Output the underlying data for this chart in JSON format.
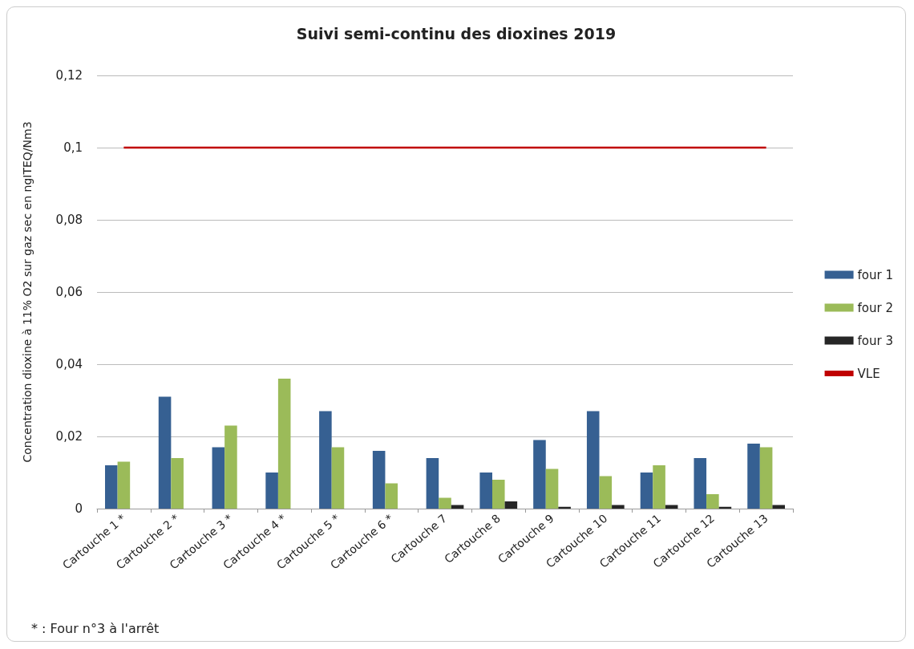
{
  "chart_data": {
    "type": "bar",
    "title": "Suivi semi-continu des dioxines 2019",
    "ylabel": "Concentration dioxine à 11% O2 sur gaz sec en ngITEQ/Nm3",
    "categories": [
      "Cartouche 1 *",
      "Cartouche 2 *",
      "Cartouche 3 *",
      "Cartouche 4 *",
      "Cartouche 5 *",
      "Cartouche 6 *",
      "Cartouche 7",
      "Cartouche 8",
      "Cartouche 9",
      "Cartouche 10",
      "Cartouche 11",
      "Cartouche 12",
      "Cartouche 13"
    ],
    "series": [
      {
        "name": "four 1",
        "color": "#366092",
        "values": [
          0.012,
          0.031,
          0.017,
          0.01,
          0.027,
          0.016,
          0.014,
          0.01,
          0.019,
          0.027,
          0.01,
          0.014,
          0.018
        ]
      },
      {
        "name": "four 2",
        "color": "#9bbb59",
        "values": [
          0.013,
          0.014,
          0.023,
          0.036,
          0.017,
          0.007,
          0.003,
          0.008,
          0.011,
          0.009,
          0.012,
          0.004,
          0.017
        ]
      },
      {
        "name": "four 3",
        "color": "#262626",
        "values": [
          null,
          null,
          null,
          null,
          null,
          null,
          0.001,
          0.002,
          0.0005,
          0.001,
          0.001,
          0.0005,
          0.001
        ]
      },
      {
        "name": "VLE",
        "type": "line",
        "color": "#c00000",
        "values": [
          0.1,
          0.1,
          0.1,
          0.1,
          0.1,
          0.1,
          0.1,
          0.1,
          0.1,
          0.1,
          0.1,
          0.1,
          0.1
        ]
      }
    ],
    "ylim": [
      0,
      0.12
    ],
    "yticks": [
      0,
      {
        "value": 0.02,
        "label": "0,02"
      },
      {
        "value": 0.04,
        "label": "0,04"
      },
      {
        "value": 0.06,
        "label": "0,06"
      },
      {
        "value": 0.08,
        "label": "0,08"
      },
      {
        "value": 0.1,
        "label": "0,1"
      },
      {
        "value": 0.12,
        "label": "0,12"
      }
    ],
    "grid": "y",
    "legend": "right",
    "marker": "none",
    "annotations": [
      "* : Four n°3 à l'arrêt"
    ]
  }
}
